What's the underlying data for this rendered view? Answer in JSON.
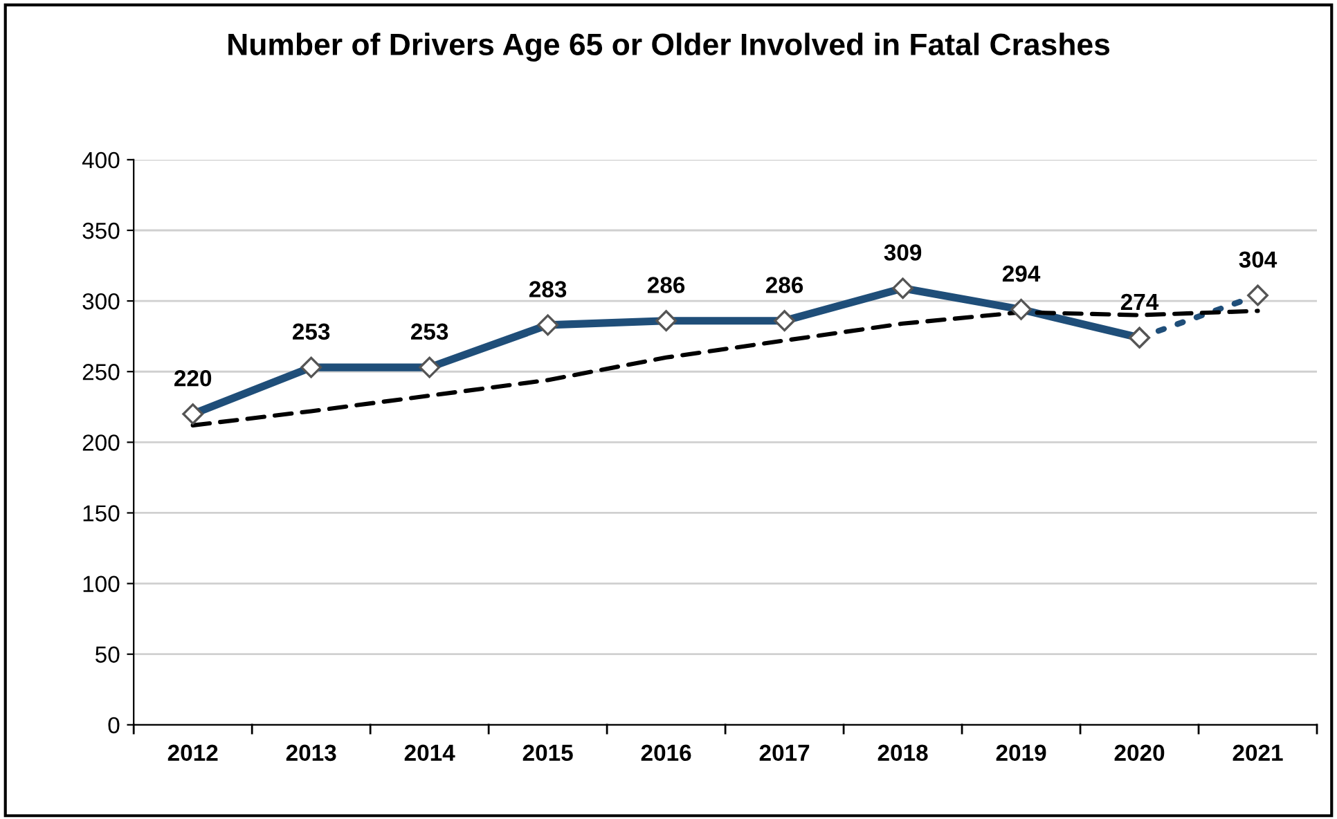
{
  "chart_data": {
    "type": "line",
    "title": "Number of Drivers Age 65 or Older Involved in Fatal Crashes",
    "categories": [
      "2012",
      "2013",
      "2014",
      "2015",
      "2016",
      "2017",
      "2018",
      "2019",
      "2020",
      "2021"
    ],
    "series": [
      {
        "color": "#1f4e79",
        "values": [
          220,
          253,
          253,
          283,
          286,
          286,
          309,
          294,
          274,
          null
        ],
        "marker": "diamond",
        "line_style": "solid",
        "value_labels": [
          "220",
          "253",
          "253",
          "283",
          "286",
          "286",
          "309",
          "294",
          "274",
          null
        ]
      },
      {
        "color": "#1f4e79",
        "values": [
          null,
          null,
          null,
          null,
          null,
          null,
          null,
          null,
          274,
          304
        ],
        "marker": "diamond",
        "line_style": "dotted",
        "value_labels": [
          null,
          null,
          null,
          null,
          null,
          null,
          null,
          null,
          null,
          "304"
        ]
      },
      {
        "color": "#000000",
        "values": [
          212,
          222,
          233,
          244,
          260,
          272,
          284,
          292,
          290,
          293
        ],
        "marker": "none",
        "line_style": "dashed"
      }
    ],
    "ylim": [
      0,
      400
    ],
    "yticks": [
      0,
      50,
      100,
      150,
      200,
      250,
      300,
      350,
      400
    ],
    "grid": "y",
    "legend": false
  }
}
